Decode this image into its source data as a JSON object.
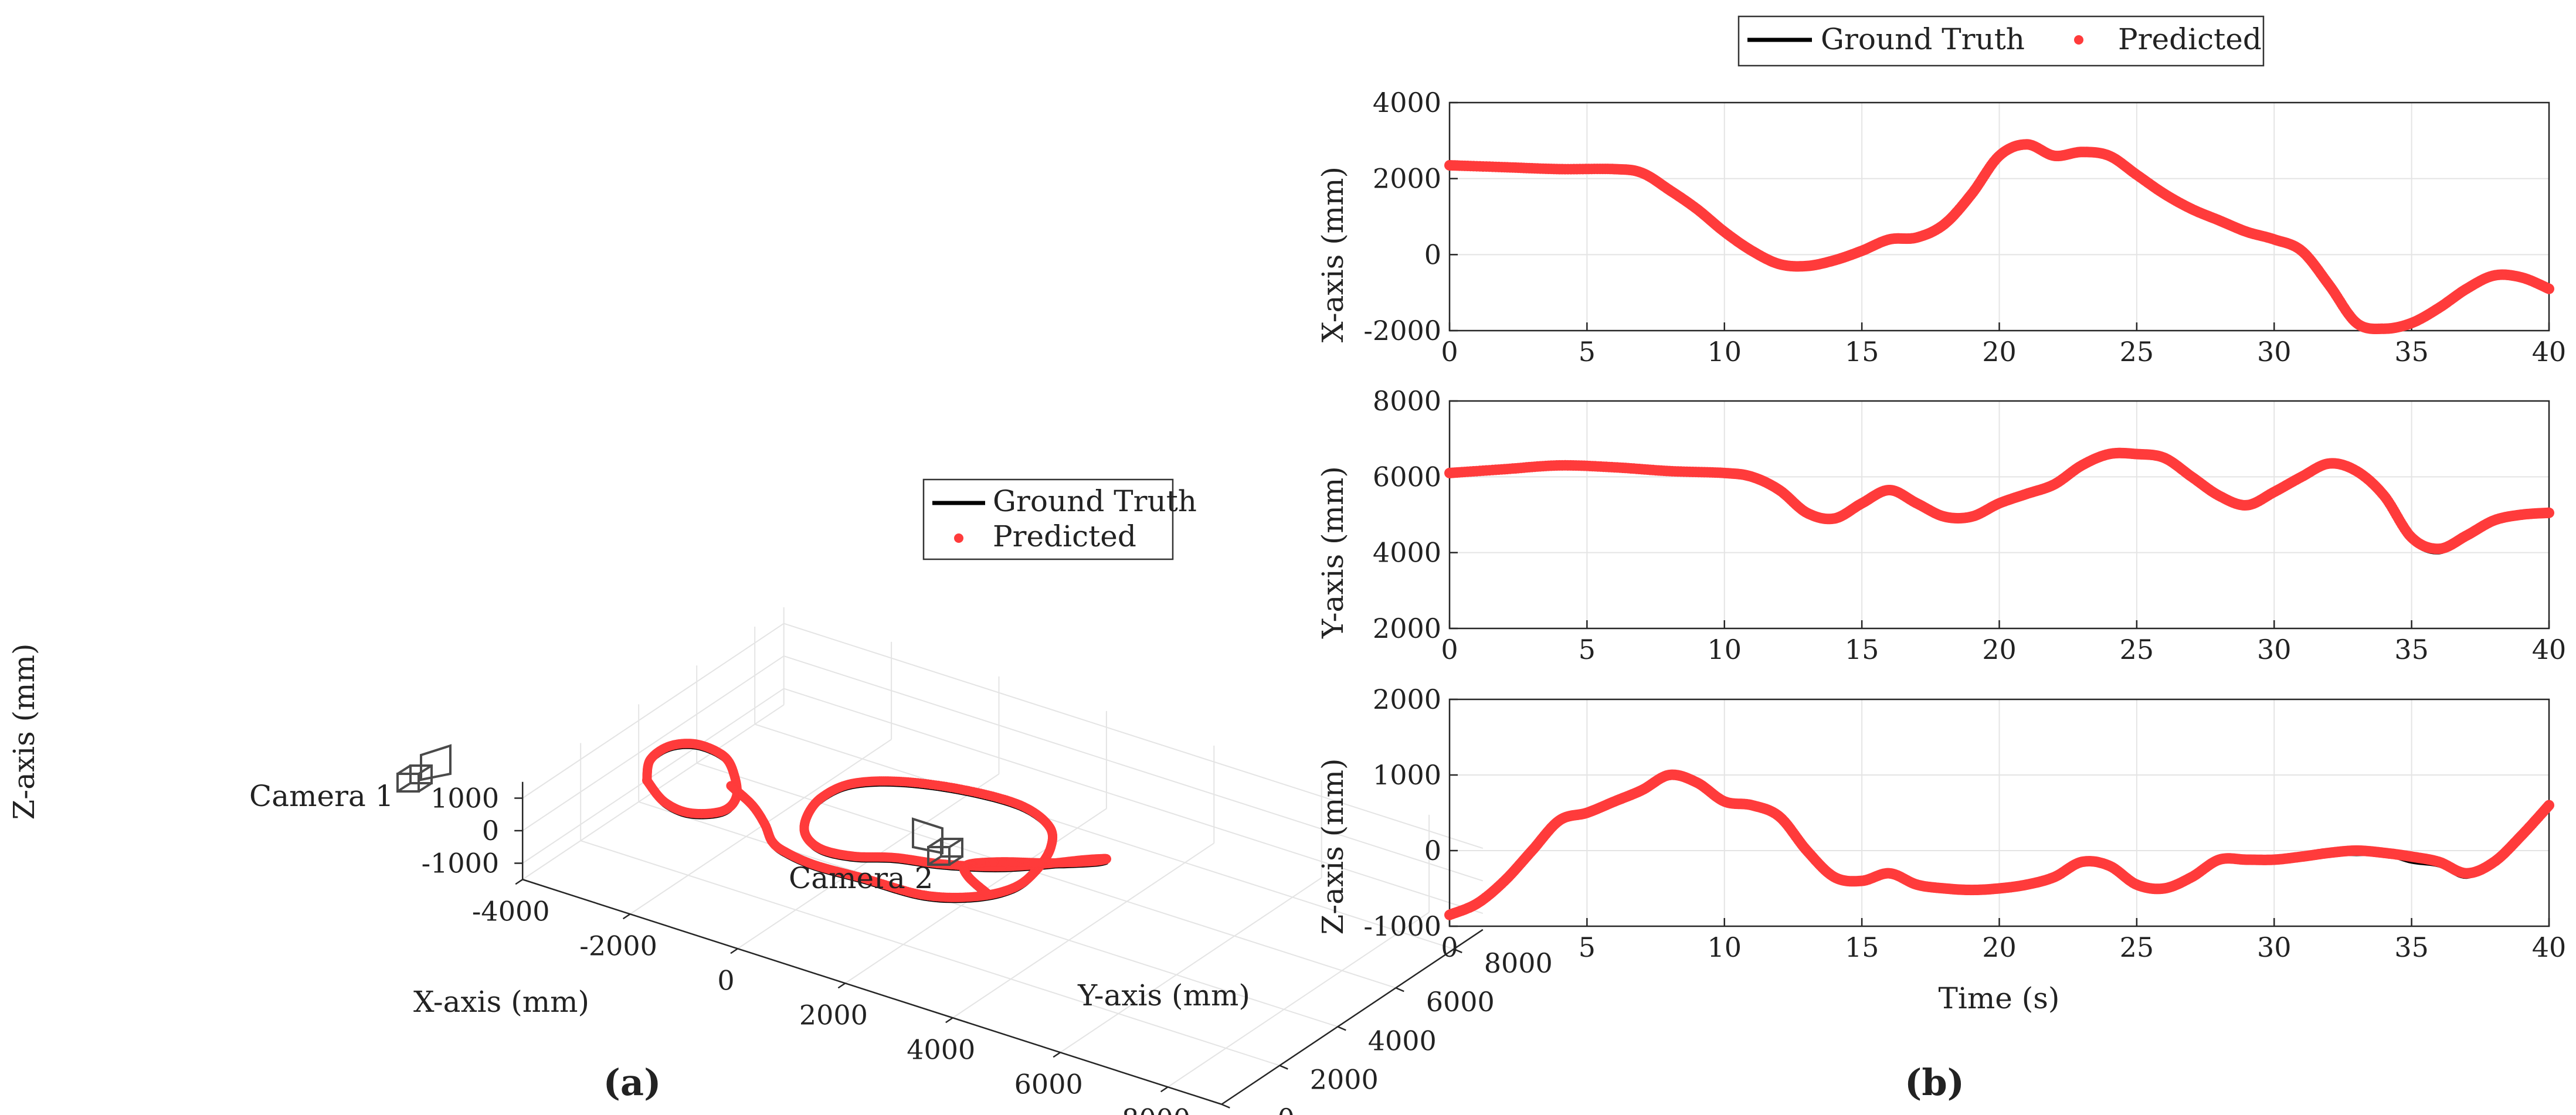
{
  "figure": {
    "panel_a_label": "(a)",
    "panel_b_label": "(b)"
  },
  "colors": {
    "ground_truth": "#000000",
    "predicted": "#ff3b3b"
  },
  "chart_data": [
    {
      "type": "line",
      "panel": "(a)",
      "projection": "3d",
      "xlabel": "X-axis (mm)",
      "ylabel": "Y-axis (mm)",
      "zlabel": "Z-axis (mm)",
      "xlim": [
        -4000,
        9000
      ],
      "ylim": [
        0,
        9000
      ],
      "zlim": [
        -1500,
        1500
      ],
      "xticks": [
        "-4000",
        "-2000",
        "0",
        "2000",
        "4000",
        "6000",
        "8000"
      ],
      "yticks": [
        "0",
        "2000",
        "4000",
        "6000",
        "8000"
      ],
      "zticks": [
        "1000",
        "0",
        "-1000"
      ],
      "grid": true,
      "legend": {
        "position": "top-right",
        "entries": [
          "Ground Truth",
          "Predicted"
        ]
      },
      "annotations": [
        {
          "text": "Camera 1",
          "x": -2000,
          "y": 1800,
          "z": -900
        },
        {
          "text": "Camera 2",
          "x": 8500,
          "y": 2500,
          "z": -1100
        }
      ],
      "series": [
        {
          "name": "Ground Truth",
          "style": "line",
          "points": [
            [
              -3200,
              2800,
              300
            ],
            [
              -3300,
              3100,
              700
            ],
            [
              -3100,
              3400,
              1050
            ],
            [
              -2700,
              3600,
              1200
            ],
            [
              -2200,
              3600,
              1100
            ],
            [
              -1900,
              3400,
              800
            ],
            [
              -1700,
              3100,
              400
            ],
            [
              -1800,
              2800,
              100
            ],
            [
              -2300,
              2600,
              -100
            ],
            [
              -2800,
              2650,
              -50
            ],
            [
              -3200,
              2800,
              300
            ],
            [
              -1800,
              3100,
              700
            ],
            [
              -1300,
              2900,
              500
            ],
            [
              -900,
              2600,
              300
            ],
            [
              -600,
              2300,
              100
            ],
            [
              -300,
              2200,
              0
            ],
            [
              200,
              2300,
              -200
            ],
            [
              1000,
              2500,
              -300
            ],
            [
              2000,
              2700,
              -400
            ],
            [
              2800,
              3000,
              -200
            ],
            [
              3300,
              3400,
              100
            ],
            [
              3500,
              3800,
              500
            ],
            [
              3500,
              4300,
              900
            ],
            [
              3200,
              4800,
              1100
            ],
            [
              2500,
              5100,
              1200
            ],
            [
              1500,
              5000,
              1200
            ],
            [
              500,
              4700,
              1100
            ],
            [
              -200,
              4300,
              900
            ],
            [
              -500,
              3800,
              600
            ],
            [
              -500,
              3300,
              300
            ],
            [
              -300,
              2900,
              100
            ],
            [
              100,
              2700,
              0
            ],
            [
              700,
              2700,
              100
            ],
            [
              1300,
              3000,
              200
            ],
            [
              2000,
              3300,
              200
            ],
            [
              2800,
              3700,
              300
            ],
            [
              3400,
              4200,
              400
            ],
            [
              3900,
              4700,
              500
            ],
            [
              4100,
              5100,
              400
            ],
            [
              3800,
              5200,
              100
            ],
            [
              3100,
              5000,
              -200
            ],
            [
              2400,
              4600,
              -300
            ],
            [
              2100,
              4000,
              -200
            ],
            [
              2400,
              3500,
              -100
            ],
            [
              3000,
              3100,
              -100
            ]
          ]
        },
        {
          "name": "Predicted",
          "style": "markers",
          "points": [
            [
              -3200,
              2800,
              300
            ],
            [
              -3300,
              3100,
              700
            ],
            [
              -3100,
              3400,
              1050
            ],
            [
              -2700,
              3600,
              1200
            ],
            [
              -2200,
              3600,
              1100
            ],
            [
              -1900,
              3400,
              800
            ],
            [
              -1700,
              3100,
              400
            ],
            [
              -1800,
              2800,
              100
            ],
            [
              -2300,
              2600,
              -100
            ],
            [
              -2800,
              2650,
              -50
            ],
            [
              -3200,
              2800,
              300
            ],
            [
              -1800,
              3100,
              700
            ],
            [
              -1300,
              2900,
              500
            ],
            [
              -900,
              2600,
              300
            ],
            [
              -600,
              2300,
              100
            ],
            [
              -300,
              2200,
              0
            ],
            [
              200,
              2300,
              -200
            ],
            [
              1000,
              2500,
              -300
            ],
            [
              2000,
              2700,
              -400
            ],
            [
              2800,
              3000,
              -200
            ],
            [
              3300,
              3400,
              100
            ],
            [
              3500,
              3800,
              500
            ],
            [
              3500,
              4300,
              900
            ],
            [
              3200,
              4800,
              1100
            ],
            [
              2500,
              5100,
              1200
            ],
            [
              1500,
              5000,
              1200
            ],
            [
              500,
              4700,
              1100
            ],
            [
              -200,
              4300,
              900
            ],
            [
              -500,
              3800,
              600
            ],
            [
              -500,
              3300,
              300
            ],
            [
              -300,
              2900,
              100
            ],
            [
              100,
              2700,
              0
            ],
            [
              700,
              2700,
              100
            ],
            [
              1300,
              3000,
              200
            ],
            [
              2000,
              3300,
              200
            ],
            [
              2800,
              3700,
              300
            ],
            [
              3400,
              4200,
              400
            ],
            [
              3900,
              4700,
              500
            ],
            [
              4100,
              5100,
              400
            ],
            [
              3800,
              5200,
              100
            ],
            [
              3100,
              5000,
              -200
            ],
            [
              2400,
              4600,
              -300
            ],
            [
              2100,
              4000,
              -200
            ],
            [
              2400,
              3500,
              -100
            ],
            [
              3000,
              3100,
              -100
            ]
          ]
        }
      ]
    },
    {
      "type": "line",
      "panel": "(b)",
      "xlabel": "",
      "ylabel": "X-axis (mm)",
      "xlim": [
        0,
        40
      ],
      "ylim": [
        -2000,
        4000
      ],
      "xticks": [
        "0",
        "5",
        "10",
        "15",
        "20",
        "25",
        "30",
        "35",
        "40"
      ],
      "yticks": [
        "-2000",
        "0",
        "2000",
        "4000"
      ],
      "grid": true,
      "legend": {
        "position": "top",
        "entries": [
          "Ground Truth",
          "Predicted"
        ]
      },
      "x": [
        0,
        2,
        4,
        6,
        7,
        8,
        9,
        10,
        11,
        12,
        13,
        14,
        15,
        16,
        17,
        18,
        19,
        20,
        21,
        22,
        23,
        24,
        25,
        26,
        27,
        28,
        29,
        30,
        31,
        32,
        33,
        34,
        35,
        36,
        37,
        38,
        39,
        40
      ],
      "series": [
        {
          "name": "Ground Truth",
          "values": [
            2350,
            2300,
            2250,
            2250,
            2150,
            1700,
            1200,
            600,
            100,
            -250,
            -300,
            -150,
            100,
            400,
            450,
            800,
            1600,
            2600,
            2900,
            2600,
            2700,
            2600,
            2100,
            1600,
            1200,
            900,
            600,
            400,
            100,
            -800,
            -1800,
            -1950,
            -1800,
            -1400,
            -900,
            -550,
            -600,
            -900
          ]
        },
        {
          "name": "Predicted",
          "values": [
            2350,
            2300,
            2250,
            2250,
            2150,
            1700,
            1200,
            600,
            100,
            -250,
            -300,
            -150,
            100,
            400,
            450,
            800,
            1600,
            2600,
            2900,
            2600,
            2700,
            2600,
            2100,
            1600,
            1200,
            900,
            600,
            400,
            100,
            -800,
            -1800,
            -1950,
            -1800,
            -1400,
            -900,
            -550,
            -600,
            -900
          ]
        }
      ]
    },
    {
      "type": "line",
      "panel": "(b)",
      "xlabel": "",
      "ylabel": "Y-axis (mm)",
      "xlim": [
        0,
        40
      ],
      "ylim": [
        2000,
        8000
      ],
      "xticks": [
        "0",
        "5",
        "10",
        "15",
        "20",
        "25",
        "30",
        "35",
        "40"
      ],
      "yticks": [
        "2000",
        "4000",
        "6000",
        "8000"
      ],
      "grid": true,
      "x": [
        0,
        2,
        4,
        6,
        8,
        10,
        11,
        12,
        13,
        14,
        15,
        16,
        17,
        18,
        19,
        20,
        21,
        22,
        23,
        24,
        25,
        26,
        27,
        28,
        29,
        30,
        31,
        32,
        33,
        34,
        35,
        36,
        37,
        38,
        39,
        40
      ],
      "series": [
        {
          "name": "Ground Truth",
          "values": [
            6100,
            6200,
            6300,
            6250,
            6150,
            6100,
            6000,
            5600,
            5000,
            4900,
            5300,
            5650,
            5300,
            4950,
            4950,
            5300,
            5550,
            5800,
            6300,
            6600,
            6600,
            6500,
            6000,
            5500,
            5250,
            5600,
            6000,
            6300,
            6100,
            5400,
            4300,
            4000,
            4400,
            4800,
            5000,
            5050
          ]
        },
        {
          "name": "Predicted",
          "values": [
            6100,
            6200,
            6300,
            6250,
            6150,
            6100,
            6000,
            5650,
            5050,
            4900,
            5300,
            5650,
            5300,
            4950,
            4950,
            5300,
            5550,
            5800,
            6300,
            6600,
            6600,
            6500,
            6000,
            5500,
            5250,
            5600,
            6000,
            6350,
            6150,
            5500,
            4400,
            4100,
            4450,
            4850,
            5000,
            5050
          ]
        }
      ]
    },
    {
      "type": "line",
      "panel": "(b)",
      "xlabel": "Time (s)",
      "ylabel": "Z-axis (mm)",
      "xlim": [
        0,
        40
      ],
      "ylim": [
        -1000,
        2000
      ],
      "xticks": [
        "0",
        "5",
        "10",
        "15",
        "20",
        "25",
        "30",
        "35",
        "40"
      ],
      "yticks": [
        "-1000",
        "0",
        "1000",
        "2000"
      ],
      "grid": true,
      "x": [
        0,
        1,
        2,
        3,
        4,
        5,
        6,
        7,
        8,
        9,
        10,
        11,
        12,
        13,
        14,
        15,
        16,
        17,
        18,
        19,
        20,
        21,
        22,
        23,
        24,
        25,
        26,
        27,
        28,
        29,
        30,
        31,
        32,
        33,
        34,
        35,
        36,
        37,
        38,
        39,
        40
      ],
      "series": [
        {
          "name": "Ground Truth",
          "values": [
            -850,
            -700,
            -400,
            0,
            400,
            500,
            650,
            800,
            1000,
            900,
            650,
            600,
            400,
            0,
            -350,
            -400,
            -300,
            -450,
            -500,
            -550,
            -500,
            -450,
            -350,
            -150,
            -200,
            -450,
            -500,
            -350,
            -150,
            -150,
            -150,
            -100,
            -50,
            -50,
            -50,
            -150,
            -200,
            -350,
            -150,
            200,
            550
          ]
        },
        {
          "name": "Predicted",
          "values": [
            -850,
            -700,
            -400,
            0,
            400,
            500,
            650,
            800,
            1000,
            900,
            650,
            600,
            450,
            0,
            -350,
            -400,
            -300,
            -450,
            -500,
            -520,
            -500,
            -450,
            -350,
            -150,
            -200,
            -450,
            -500,
            -350,
            -120,
            -120,
            -120,
            -80,
            -30,
            0,
            -30,
            -80,
            -150,
            -300,
            -150,
            200,
            600
          ]
        }
      ]
    }
  ]
}
